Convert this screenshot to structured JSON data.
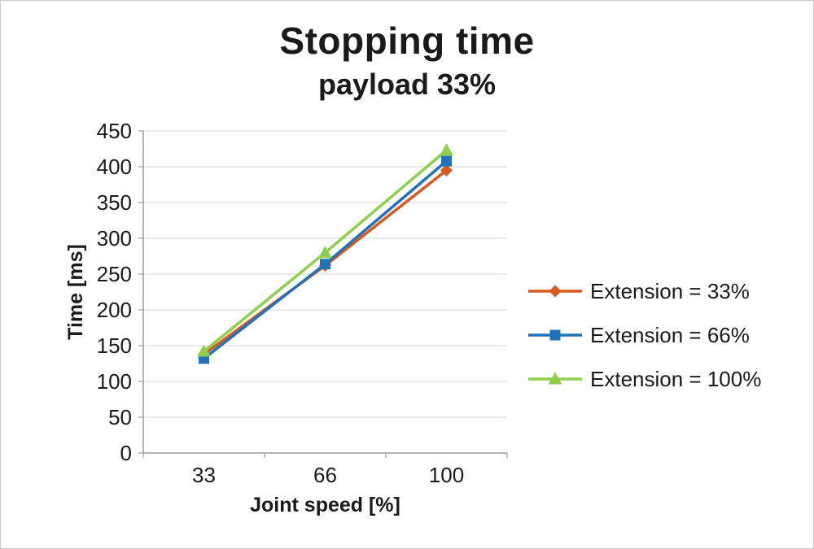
{
  "page": {
    "background": "#ffffff",
    "border_color": "#c9c9c9"
  },
  "chart_data": {
    "type": "line",
    "title": "Stopping time",
    "subtitle": "payload 33%",
    "xlabel": "Joint speed [%]",
    "ylabel": "Time [ms]",
    "categories": [
      "33",
      "66",
      "100"
    ],
    "series": [
      {
        "name": "Extension = 33%",
        "values": [
          138,
          262,
          395
        ],
        "color": "#d65a1f",
        "marker": "diamond"
      },
      {
        "name": "Extension = 66%",
        "values": [
          132,
          264,
          408
        ],
        "color": "#2272b9",
        "marker": "square"
      },
      {
        "name": "Extension = 100%",
        "values": [
          142,
          280,
          423
        ],
        "color": "#90ce4e",
        "marker": "triangle"
      }
    ],
    "ylim": [
      0,
      450
    ],
    "ytick_step": 50,
    "grid": true,
    "legend_position": "right",
    "colors": {
      "grid": "#d6d6d6",
      "axis": "#9b9b9b",
      "text": "#1a1a1a"
    }
  }
}
